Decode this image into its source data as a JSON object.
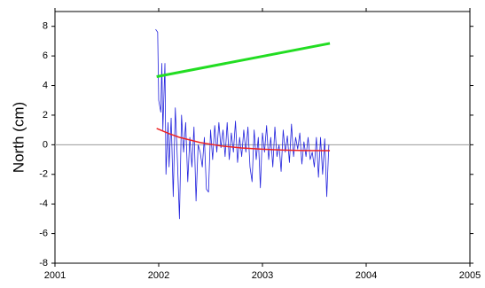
{
  "chart_data": {
    "type": "line",
    "y_label": "North (cm)",
    "xlim": [
      2001,
      2005
    ],
    "xticks": [
      2001,
      2002,
      2003,
      2004,
      2005
    ],
    "ylim": [
      -8,
      9
    ],
    "yticks": [
      -8,
      -6,
      -4,
      -2,
      0,
      2,
      4,
      6,
      8
    ],
    "reference_line": 0,
    "reference_color": "#999999",
    "series": [
      {
        "color": "#2222dd",
        "width": 0.8,
        "x": [
          2001.97,
          2001.99,
          2002.0,
          2002.02,
          2002.03,
          2002.04,
          2002.06,
          2002.07,
          2002.09,
          2002.1,
          2002.12,
          2002.14,
          2002.16,
          2002.18,
          2002.2,
          2002.22,
          2002.24,
          2002.26,
          2002.28,
          2002.3,
          2002.32,
          2002.34,
          2002.36,
          2002.38,
          2002.4,
          2002.42,
          2002.44,
          2002.46,
          2002.48,
          2002.5,
          2002.52,
          2002.54,
          2002.56,
          2002.58,
          2002.6,
          2002.62,
          2002.64,
          2002.66,
          2002.68,
          2002.7,
          2002.72,
          2002.74,
          2002.76,
          2002.78,
          2002.8,
          2002.82,
          2002.84,
          2002.86,
          2002.88,
          2002.9,
          2002.92,
          2002.94,
          2002.96,
          2002.98,
          2003.0,
          2003.02,
          2003.04,
          2003.06,
          2003.08,
          2003.1,
          2003.12,
          2003.14,
          2003.16,
          2003.18,
          2003.2,
          2003.22,
          2003.24,
          2003.26,
          2003.28,
          2003.3,
          2003.32,
          2003.34,
          2003.36,
          2003.38,
          2003.4,
          2003.42,
          2003.44,
          2003.46,
          2003.48,
          2003.5,
          2003.52,
          2003.54,
          2003.56,
          2003.58,
          2003.6,
          2003.62,
          2003.64
        ],
        "values": [
          7.8,
          7.6,
          3.0,
          2.2,
          5.5,
          1.0,
          5.5,
          -2.0,
          1.5,
          -1.5,
          1.8,
          -3.5,
          2.5,
          -1.0,
          -5.0,
          2.0,
          -0.5,
          1.5,
          -2.5,
          0.5,
          -1.5,
          1.2,
          -3.8,
          0.0,
          -0.5,
          -1.5,
          0.5,
          -3.0,
          -3.2,
          1.0,
          -1.0,
          1.3,
          -0.5,
          1.5,
          -0.2,
          1.0,
          -0.8,
          1.5,
          -1.0,
          0.8,
          -0.5,
          1.6,
          -1.2,
          0.5,
          -0.8,
          1.0,
          -0.5,
          1.2,
          -1.5,
          -2.5,
          1.0,
          -1.0,
          0.5,
          -2.9,
          0.8,
          -0.5,
          1.3,
          -1.0,
          0.5,
          -1.5,
          1.2,
          -0.8,
          0.0,
          -1.8,
          1.0,
          -0.5,
          0.6,
          -1.2,
          1.4,
          -0.8,
          0.5,
          -0.3,
          0.8,
          -1.3,
          0.2,
          -0.8,
          0.5,
          -1.0,
          -0.5,
          -1.5,
          0.5,
          -2.2,
          0.5,
          -2.0,
          0.4,
          -3.5,
          0.0
        ]
      },
      {
        "color": "#ee2222",
        "width": 1.5,
        "x": [
          2001.98,
          2002.1,
          2002.2,
          2002.4,
          2002.6,
          2002.8,
          2003.0,
          2003.2,
          2003.4,
          2003.65
        ],
        "values": [
          1.1,
          0.75,
          0.5,
          0.15,
          -0.08,
          -0.22,
          -0.3,
          -0.36,
          -0.39,
          -0.4
        ]
      },
      {
        "color": "#22dd22",
        "width": 3,
        "x": [
          2001.98,
          2003.65
        ],
        "values": [
          4.6,
          6.85
        ]
      }
    ]
  }
}
